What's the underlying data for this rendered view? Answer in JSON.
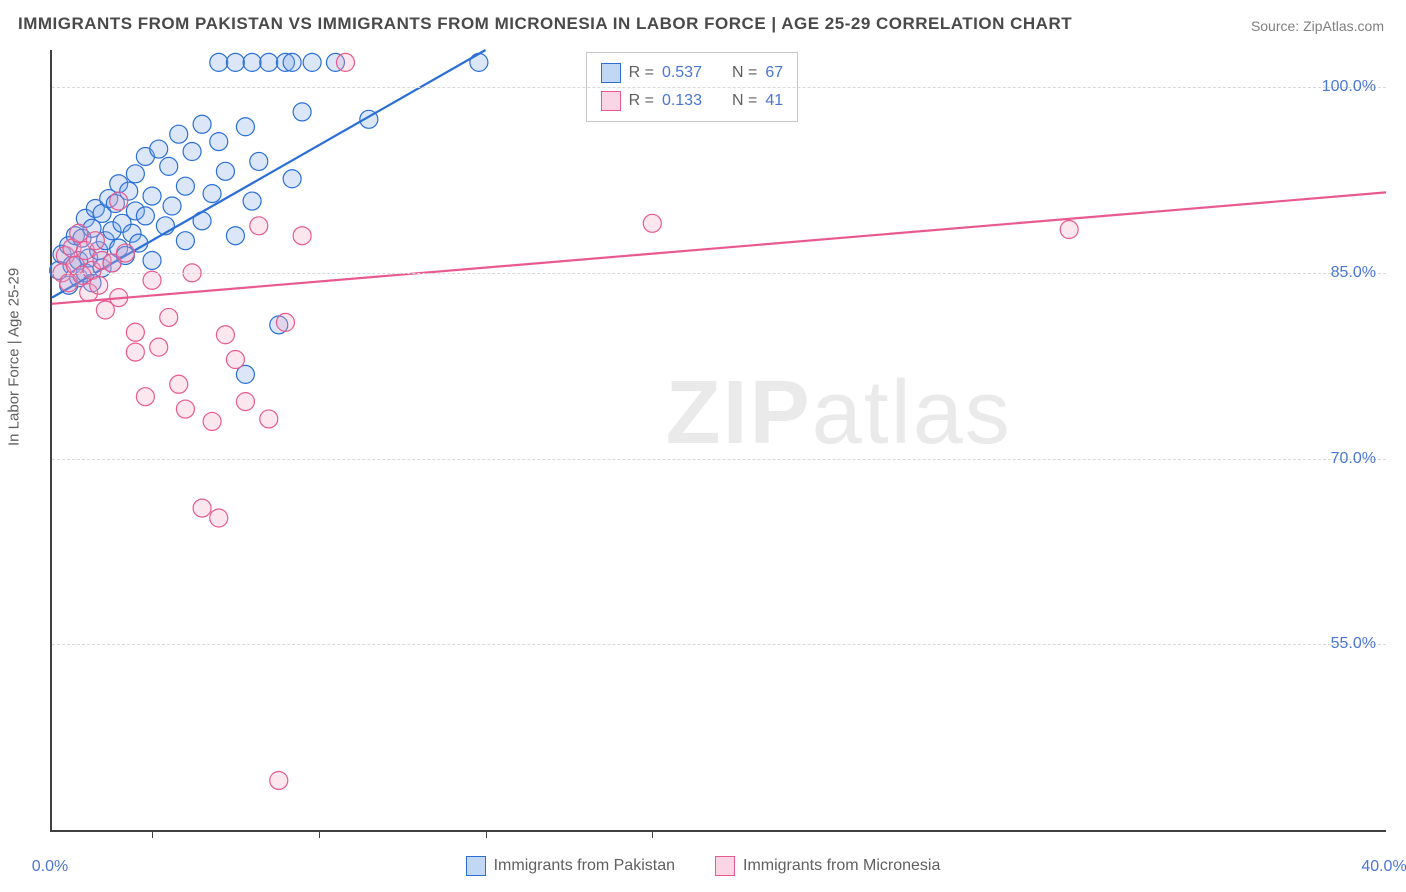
{
  "title": "IMMIGRANTS FROM PAKISTAN VS IMMIGRANTS FROM MICRONESIA IN LABOR FORCE | AGE 25-29 CORRELATION CHART",
  "source_label": "Source: ZipAtlas.com",
  "y_axis_label": "In Labor Force | Age 25-29",
  "watermark": {
    "bold": "ZIP",
    "rest": "atlas"
  },
  "chart": {
    "type": "scatter",
    "x_min": 0.0,
    "x_max": 40.0,
    "y_min": 40.0,
    "y_max": 103.0,
    "x_ticks": [
      0.0,
      40.0
    ],
    "x_tick_labels": [
      "0.0%",
      "40.0%"
    ],
    "x_minor_ticks": [
      3.0,
      8.0,
      13.0,
      18.0
    ],
    "y_gridlines": [
      55.0,
      70.0,
      85.0,
      100.0
    ],
    "y_tick_labels": [
      "55.0%",
      "70.0%",
      "85.0%",
      "100.0%"
    ],
    "background_color": "#ffffff",
    "grid_color": "#d8d8d8",
    "axis_color": "#404040",
    "marker_radius": 9,
    "marker_stroke_width": 1.2,
    "marker_fill_opacity": 0.28,
    "line_width": 2.2,
    "title_fontsize": 17,
    "label_fontsize": 15,
    "tick_fontsize": 16
  },
  "series": [
    {
      "name": "Immigrants from Pakistan",
      "color_stroke": "#2a6fd6",
      "color_fill": "#7da9e8",
      "r_label": "R =",
      "r_value": "0.537",
      "n_label": "N =",
      "n_value": "67",
      "trend": {
        "x1": 0.0,
        "y1": 83.0,
        "x2": 13.0,
        "y2": 103.0
      },
      "points": [
        [
          0.2,
          85.2
        ],
        [
          0.3,
          86.5
        ],
        [
          0.5,
          84.0
        ],
        [
          0.5,
          87.2
        ],
        [
          0.6,
          85.6
        ],
        [
          0.7,
          88.0
        ],
        [
          0.8,
          86.0
        ],
        [
          0.8,
          84.6
        ],
        [
          0.9,
          87.8
        ],
        [
          1.0,
          85.0
        ],
        [
          1.0,
          89.4
        ],
        [
          1.1,
          86.2
        ],
        [
          1.2,
          88.6
        ],
        [
          1.2,
          84.2
        ],
        [
          1.3,
          90.2
        ],
        [
          1.4,
          86.8
        ],
        [
          1.5,
          85.4
        ],
        [
          1.5,
          89.8
        ],
        [
          1.6,
          87.6
        ],
        [
          1.7,
          91.0
        ],
        [
          1.8,
          88.4
        ],
        [
          1.8,
          85.8
        ],
        [
          1.9,
          90.6
        ],
        [
          2.0,
          87.0
        ],
        [
          2.0,
          92.2
        ],
        [
          2.1,
          89.0
        ],
        [
          2.2,
          86.4
        ],
        [
          2.3,
          91.6
        ],
        [
          2.4,
          88.2
        ],
        [
          2.5,
          93.0
        ],
        [
          2.5,
          90.0
        ],
        [
          2.6,
          87.4
        ],
        [
          2.8,
          94.4
        ],
        [
          2.8,
          89.6
        ],
        [
          3.0,
          91.2
        ],
        [
          3.0,
          86.0
        ],
        [
          3.2,
          95.0
        ],
        [
          3.4,
          88.8
        ],
        [
          3.5,
          93.6
        ],
        [
          3.6,
          90.4
        ],
        [
          3.8,
          96.2
        ],
        [
          4.0,
          87.6
        ],
        [
          4.0,
          92.0
        ],
        [
          4.2,
          94.8
        ],
        [
          4.5,
          89.2
        ],
        [
          4.5,
          97.0
        ],
        [
          4.8,
          91.4
        ],
        [
          5.0,
          95.6
        ],
        [
          5.0,
          102.0
        ],
        [
          5.2,
          93.2
        ],
        [
          5.5,
          102.0
        ],
        [
          5.5,
          88.0
        ],
        [
          5.8,
          96.8
        ],
        [
          6.0,
          102.0
        ],
        [
          6.0,
          90.8
        ],
        [
          6.2,
          94.0
        ],
        [
          6.5,
          102.0
        ],
        [
          6.8,
          80.8
        ],
        [
          7.0,
          102.0
        ],
        [
          7.2,
          92.6
        ],
        [
          7.2,
          102.0
        ],
        [
          7.5,
          98.0
        ],
        [
          7.8,
          102.0
        ],
        [
          8.5,
          102.0
        ],
        [
          9.5,
          97.4
        ],
        [
          5.8,
          76.8
        ],
        [
          12.8,
          102.0
        ]
      ]
    },
    {
      "name": "Immigrants from Micronesia",
      "color_stroke": "#e85a8f",
      "color_fill": "#f5a8c5",
      "r_label": "R =",
      "r_value": "0.133",
      "n_label": "N =",
      "n_value": "41",
      "trend": {
        "x1": 0.0,
        "y1": 82.5,
        "x2": 40.0,
        "y2": 91.5
      },
      "points": [
        [
          0.3,
          85.0
        ],
        [
          0.4,
          86.4
        ],
        [
          0.5,
          84.2
        ],
        [
          0.6,
          87.0
        ],
        [
          0.7,
          85.6
        ],
        [
          0.8,
          88.2
        ],
        [
          0.9,
          84.8
        ],
        [
          1.0,
          86.8
        ],
        [
          1.1,
          83.4
        ],
        [
          1.2,
          85.2
        ],
        [
          1.3,
          87.6
        ],
        [
          1.4,
          84.0
        ],
        [
          1.5,
          86.0
        ],
        [
          1.6,
          82.0
        ],
        [
          1.8,
          85.8
        ],
        [
          2.0,
          90.8
        ],
        [
          2.0,
          83.0
        ],
        [
          2.2,
          86.6
        ],
        [
          2.5,
          80.2
        ],
        [
          2.5,
          78.6
        ],
        [
          2.8,
          75.0
        ],
        [
          3.0,
          84.4
        ],
        [
          3.2,
          79.0
        ],
        [
          3.5,
          81.4
        ],
        [
          3.8,
          76.0
        ],
        [
          4.0,
          74.0
        ],
        [
          4.2,
          85.0
        ],
        [
          4.5,
          66.0
        ],
        [
          4.8,
          73.0
        ],
        [
          5.0,
          65.2
        ],
        [
          5.2,
          80.0
        ],
        [
          5.5,
          78.0
        ],
        [
          5.8,
          74.6
        ],
        [
          6.2,
          88.8
        ],
        [
          6.5,
          73.2
        ],
        [
          6.8,
          44.0
        ],
        [
          7.0,
          81.0
        ],
        [
          7.5,
          88.0
        ],
        [
          8.8,
          102.0
        ],
        [
          18.0,
          89.0
        ],
        [
          30.5,
          88.5
        ]
      ]
    }
  ],
  "legend_bottom": [
    {
      "swatch_fill": "#7da9e8",
      "swatch_stroke": "#2a6fd6",
      "label": "Immigrants from Pakistan"
    },
    {
      "swatch_fill": "#f5a8c5",
      "swatch_stroke": "#e85a8f",
      "label": "Immigrants from Micronesia"
    }
  ]
}
